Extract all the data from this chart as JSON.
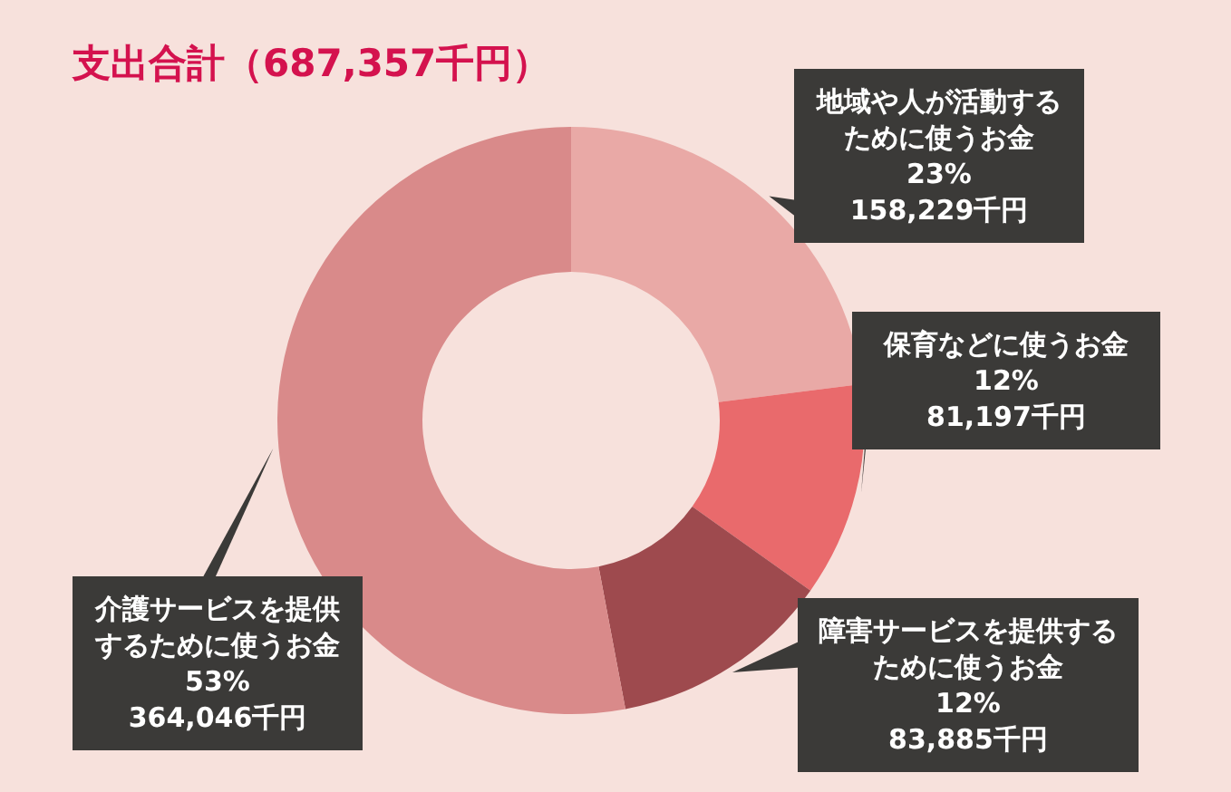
{
  "chart_data": {
    "type": "donut",
    "title": "支出合計（687,357千円）",
    "categories": [
      "地域や人が活動するために使うお金",
      "保育などに使うお金",
      "障害サービスを提供するために使うお金",
      "介護サービスを提供するために使うお金"
    ],
    "values": [
      158229,
      81197,
      83885,
      364046
    ],
    "colors": [
      "#e9a9a6",
      "#e96a6c",
      "#9e4a4e",
      "#d98a8a"
    ],
    "value_labels": [
      "23%\n158,229千円",
      "12%\n81,197千円",
      "12%\n83,885千円",
      "53%\n364,046千円"
    ]
  }
}
